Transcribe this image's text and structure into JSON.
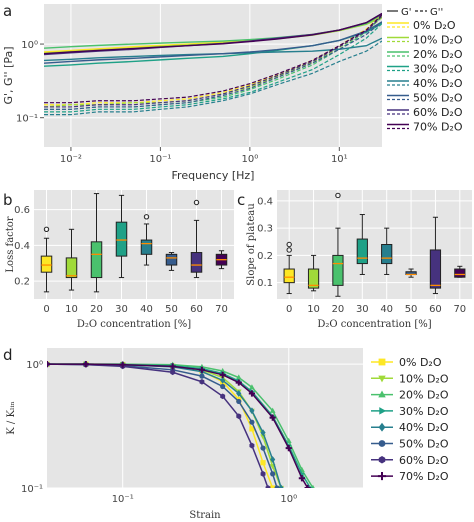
{
  "figure": {
    "panel_labels": [
      "a",
      "b",
      "c",
      "d"
    ]
  },
  "colors": {
    "axes_bg": "#e5e5e5",
    "grid": "#ffffff",
    "median": "#ff8c00",
    "palette": [
      "#fde725",
      "#a0da39",
      "#4ac16d",
      "#1fa187",
      "#277f8e",
      "#365c8d",
      "#46327e",
      "#440154"
    ]
  },
  "chart_data": [
    {
      "id": "a",
      "type": "line",
      "xlabel": "Frequency [Hz]",
      "ylabel": "G', G'' [Pa]",
      "x_scale": "log",
      "y_scale": "log",
      "xlim": [
        0.005,
        30
      ],
      "ylim": [
        0.04,
        3.5
      ],
      "x_ticks": [
        {
          "v": 0.01,
          "l": "10⁻²"
        },
        {
          "v": 0.1,
          "l": "10⁻¹"
        },
        {
          "v": 1,
          "l": "10⁰"
        },
        {
          "v": 10,
          "l": "10¹"
        }
      ],
      "y_ticks": [
        {
          "v": 0.1,
          "l": "10⁻¹"
        },
        {
          "v": 1,
          "l": "10⁰"
        }
      ],
      "grid": true,
      "legend_placement": "outside-right",
      "legend_header": [
        "G'",
        "G''"
      ],
      "freq": [
        0.005,
        0.01,
        0.02,
        0.05,
        0.1,
        0.2,
        0.5,
        1,
        2,
        5,
        10,
        20,
        30
      ],
      "series": [
        {
          "name": "0% D₂O",
          "g_prime": [
            0.78,
            0.82,
            0.86,
            0.92,
            0.96,
            1.0,
            1.06,
            1.12,
            1.2,
            1.35,
            1.55,
            1.9,
            2.4
          ],
          "g_double_prime": [
            0.15,
            0.15,
            0.16,
            0.16,
            0.17,
            0.18,
            0.22,
            0.28,
            0.38,
            0.6,
            0.95,
            1.6,
            2.5
          ]
        },
        {
          "name": "10% D₂O",
          "g_prime": [
            0.75,
            0.79,
            0.83,
            0.88,
            0.93,
            0.97,
            1.03,
            1.1,
            1.18,
            1.32,
            1.52,
            1.85,
            2.3
          ],
          "g_double_prime": [
            0.14,
            0.15,
            0.15,
            0.16,
            0.16,
            0.17,
            0.21,
            0.26,
            0.36,
            0.56,
            0.9,
            1.5,
            2.3
          ]
        },
        {
          "name": "20% D₂O",
          "g_prime": [
            0.88,
            0.92,
            0.96,
            1.0,
            1.03,
            1.06,
            1.1,
            1.15,
            1.22,
            1.35,
            1.55,
            1.9,
            2.5
          ],
          "g_double_prime": [
            0.13,
            0.13,
            0.14,
            0.14,
            0.15,
            0.16,
            0.19,
            0.24,
            0.33,
            0.52,
            0.85,
            1.45,
            2.4
          ]
        },
        {
          "name": "30% D₂O",
          "g_prime": [
            0.5,
            0.52,
            0.55,
            0.58,
            0.61,
            0.64,
            0.68,
            0.74,
            0.82,
            0.95,
            1.12,
            1.45,
            1.9
          ],
          "g_double_prime": [
            0.12,
            0.12,
            0.13,
            0.13,
            0.14,
            0.15,
            0.18,
            0.22,
            0.3,
            0.45,
            0.72,
            1.2,
            1.9
          ]
        },
        {
          "name": "40% D₂O",
          "g_prime": [
            0.6,
            0.62,
            0.65,
            0.68,
            0.7,
            0.72,
            0.74,
            0.76,
            0.78,
            0.8,
            0.85,
            0.95,
            1.2
          ],
          "g_double_prime": [
            0.11,
            0.11,
            0.12,
            0.12,
            0.13,
            0.14,
            0.17,
            0.21,
            0.28,
            0.4,
            0.58,
            0.8,
            1.1
          ]
        },
        {
          "name": "50% D₂O",
          "g_prime": [
            0.55,
            0.58,
            0.61,
            0.64,
            0.67,
            0.7,
            0.74,
            0.78,
            0.84,
            0.95,
            1.12,
            1.5,
            2.0
          ],
          "g_double_prime": [
            0.13,
            0.13,
            0.14,
            0.14,
            0.15,
            0.16,
            0.2,
            0.25,
            0.35,
            0.55,
            0.85,
            1.35,
            2.0
          ]
        },
        {
          "name": "60% D₂O",
          "g_prime": [
            0.72,
            0.76,
            0.8,
            0.85,
            0.9,
            0.95,
            1.02,
            1.1,
            1.2,
            1.35,
            1.55,
            1.95,
            2.6
          ],
          "g_double_prime": [
            0.14,
            0.14,
            0.15,
            0.15,
            0.16,
            0.17,
            0.21,
            0.27,
            0.37,
            0.58,
            0.92,
            1.5,
            2.4
          ]
        },
        {
          "name": "70% D₂O",
          "g_prime": [
            0.74,
            0.78,
            0.82,
            0.87,
            0.91,
            0.95,
            1.01,
            1.08,
            1.17,
            1.33,
            1.55,
            1.95,
            2.6
          ],
          "g_double_prime": [
            0.16,
            0.16,
            0.17,
            0.17,
            0.18,
            0.19,
            0.23,
            0.29,
            0.39,
            0.6,
            0.95,
            1.55,
            2.5
          ]
        }
      ]
    },
    {
      "id": "b",
      "type": "box",
      "xlabel": "D₂O concentration [%]",
      "ylabel": "Loss factor",
      "ylim": [
        0.1,
        0.71
      ],
      "y_ticks": [
        0.2,
        0.4,
        0.6
      ],
      "categories": [
        "0",
        "10",
        "20",
        "30",
        "40",
        "50",
        "60",
        "70"
      ],
      "boxes": [
        {
          "whislo": 0.14,
          "q1": 0.25,
          "med": 0.29,
          "q3": 0.34,
          "whishi": 0.44,
          "fliers": [
            0.49
          ]
        },
        {
          "whislo": 0.15,
          "q1": 0.22,
          "med": 0.23,
          "q3": 0.33,
          "whishi": 0.49,
          "fliers": []
        },
        {
          "whislo": 0.14,
          "q1": 0.22,
          "med": 0.35,
          "q3": 0.42,
          "whishi": 0.69,
          "fliers": []
        },
        {
          "whislo": 0.22,
          "q1": 0.34,
          "med": 0.43,
          "q3": 0.53,
          "whishi": 0.68,
          "fliers": []
        },
        {
          "whislo": 0.29,
          "q1": 0.35,
          "med": 0.41,
          "q3": 0.43,
          "whishi": 0.52,
          "fliers": [
            0.56
          ]
        },
        {
          "whislo": 0.26,
          "q1": 0.29,
          "med": 0.33,
          "q3": 0.35,
          "whishi": 0.36,
          "fliers": []
        },
        {
          "whislo": 0.22,
          "q1": 0.25,
          "med": 0.29,
          "q3": 0.36,
          "whishi": 0.54,
          "fliers": [
            0.64
          ]
        },
        {
          "whislo": 0.27,
          "q1": 0.29,
          "med": 0.32,
          "q3": 0.35,
          "whishi": 0.37,
          "fliers": []
        }
      ]
    },
    {
      "id": "c",
      "type": "box",
      "xlabel": "D₂O concentration [%]",
      "ylabel": "Slope of plateau",
      "ylim": [
        0.04,
        0.44
      ],
      "y_ticks": [
        0.1,
        0.2,
        0.3,
        0.4
      ],
      "categories": [
        "0",
        "10",
        "20",
        "30",
        "40",
        "50",
        "60",
        "70"
      ],
      "boxes": [
        {
          "whislo": 0.06,
          "q1": 0.1,
          "med": 0.12,
          "q3": 0.15,
          "whishi": 0.2,
          "fliers": [
            0.22,
            0.24
          ]
        },
        {
          "whislo": 0.07,
          "q1": 0.08,
          "med": 0.09,
          "q3": 0.15,
          "whishi": 0.2,
          "fliers": []
        },
        {
          "whislo": 0.05,
          "q1": 0.09,
          "med": 0.17,
          "q3": 0.2,
          "whishi": 0.3,
          "fliers": [
            0.42
          ]
        },
        {
          "whislo": 0.13,
          "q1": 0.17,
          "med": 0.19,
          "q3": 0.26,
          "whishi": 0.35,
          "fliers": []
        },
        {
          "whislo": 0.13,
          "q1": 0.17,
          "med": 0.19,
          "q3": 0.24,
          "whishi": 0.3,
          "fliers": []
        },
        {
          "whislo": 0.12,
          "q1": 0.13,
          "med": 0.13,
          "q3": 0.14,
          "whishi": 0.15,
          "fliers": []
        },
        {
          "whislo": 0.06,
          "q1": 0.08,
          "med": 0.09,
          "q3": 0.22,
          "whishi": 0.34,
          "fliers": []
        },
        {
          "whislo": 0.12,
          "q1": 0.12,
          "med": 0.13,
          "q3": 0.15,
          "whishi": 0.16,
          "fliers": []
        }
      ]
    },
    {
      "id": "d",
      "type": "line",
      "xlabel": "Strain",
      "ylabel": "K / Kₗᵢₙ",
      "x_scale": "log",
      "y_scale": "log",
      "xlim": [
        0.035,
        2.8
      ],
      "ylim": [
        0.1,
        1.35
      ],
      "x_ticks": [
        {
          "v": 0.1,
          "l": "10⁻¹"
        },
        {
          "v": 1,
          "l": "10⁰"
        }
      ],
      "y_ticks": [
        {
          "v": 0.1,
          "l": "10⁻¹"
        },
        {
          "v": 1,
          "l": "10⁰"
        }
      ],
      "grid": true,
      "legend_placement": "outside-right",
      "series": [
        {
          "name": "0% D₂O",
          "marker": "square",
          "x": [
            0.035,
            0.06,
            0.1,
            0.2,
            0.3,
            0.4,
            0.5,
            0.6,
            0.7,
            0.8
          ],
          "y": [
            1.0,
            1.0,
            0.99,
            0.96,
            0.88,
            0.72,
            0.52,
            0.3,
            0.16,
            0.1
          ]
        },
        {
          "name": "10% D₂O",
          "marker": "triangle-down",
          "x": [
            0.035,
            0.06,
            0.1,
            0.2,
            0.3,
            0.4,
            0.5,
            0.6,
            0.7,
            0.8,
            0.9
          ],
          "y": [
            1.0,
            1.0,
            1.0,
            0.97,
            0.9,
            0.78,
            0.6,
            0.42,
            0.26,
            0.15,
            0.1
          ]
        },
        {
          "name": "20% D₂O",
          "marker": "triangle-up",
          "x": [
            0.035,
            0.06,
            0.1,
            0.2,
            0.3,
            0.4,
            0.5,
            0.6,
            0.8,
            1.0,
            1.2,
            1.4
          ],
          "y": [
            1.0,
            1.0,
            1.0,
            0.99,
            0.95,
            0.88,
            0.78,
            0.65,
            0.42,
            0.24,
            0.14,
            0.1
          ]
        },
        {
          "name": "30% D₂O",
          "marker": "triangle-right",
          "x": [
            0.035,
            0.06,
            0.1,
            0.2,
            0.3,
            0.4,
            0.5,
            0.6,
            0.8,
            1.0,
            1.2,
            1.35
          ],
          "y": [
            1.0,
            1.0,
            0.99,
            0.97,
            0.92,
            0.84,
            0.73,
            0.6,
            0.38,
            0.22,
            0.13,
            0.1
          ]
        },
        {
          "name": "40% D₂O",
          "marker": "diamond",
          "x": [
            0.035,
            0.06,
            0.1,
            0.2,
            0.3,
            0.4,
            0.5,
            0.6,
            0.7,
            0.8,
            0.9
          ],
          "y": [
            1.0,
            1.0,
            0.99,
            0.95,
            0.87,
            0.74,
            0.58,
            0.42,
            0.28,
            0.17,
            0.1
          ]
        },
        {
          "name": "50% D₂O",
          "marker": "circle",
          "x": [
            0.035,
            0.06,
            0.1,
            0.2,
            0.3,
            0.4,
            0.5,
            0.6,
            0.7,
            0.8,
            0.85
          ],
          "y": [
            1.0,
            0.99,
            0.97,
            0.9,
            0.8,
            0.66,
            0.5,
            0.34,
            0.21,
            0.13,
            0.1
          ]
        },
        {
          "name": "60% D₂O",
          "marker": "hexagon",
          "x": [
            0.035,
            0.06,
            0.1,
            0.2,
            0.3,
            0.4,
            0.5,
            0.6,
            0.7,
            0.75
          ],
          "y": [
            1.0,
            0.99,
            0.96,
            0.86,
            0.72,
            0.55,
            0.38,
            0.22,
            0.13,
            0.1
          ]
        },
        {
          "name": "70% D₂O",
          "marker": "plus",
          "x": [
            0.035,
            0.06,
            0.1,
            0.2,
            0.3,
            0.4,
            0.5,
            0.6,
            0.8,
            1.0,
            1.2,
            1.3
          ],
          "y": [
            1.0,
            1.0,
            0.99,
            0.96,
            0.9,
            0.82,
            0.71,
            0.58,
            0.37,
            0.21,
            0.12,
            0.1
          ]
        }
      ]
    }
  ]
}
